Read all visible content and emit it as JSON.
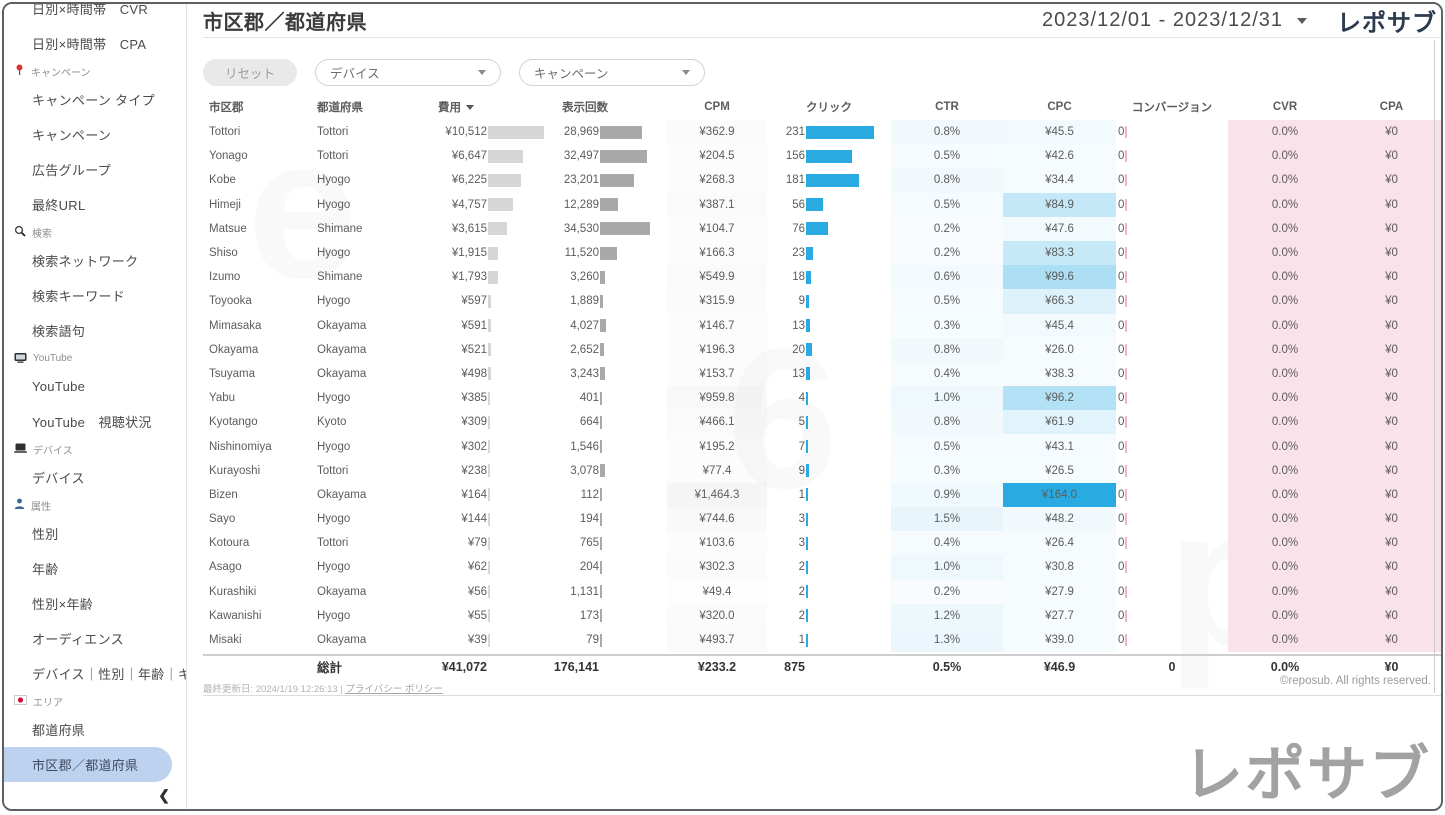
{
  "colors": {
    "accent": "#29abe2",
    "pink_column": "#fae2ea",
    "selected_item": "#bdd2ee",
    "bar_cost": "#d6d6d6",
    "bar_impressions": "#a9a9a9"
  },
  "sidebar": {
    "items": [
      {
        "type": "item",
        "label": "日別×時間帯　CVR"
      },
      {
        "type": "item",
        "label": "日別×時間帯　CPA"
      },
      {
        "type": "section",
        "label": "キャンペーン",
        "icon": "pin-icon"
      },
      {
        "type": "item",
        "label": "キャンペーン タイプ"
      },
      {
        "type": "item",
        "label": "キャンペーン"
      },
      {
        "type": "item",
        "label": "広告グループ"
      },
      {
        "type": "item",
        "label": "最終URL"
      },
      {
        "type": "section",
        "label": "検索",
        "icon": "search-icon"
      },
      {
        "type": "item",
        "label": "検索ネットワーク"
      },
      {
        "type": "item",
        "label": "検索キーワード"
      },
      {
        "type": "item",
        "label": "検索語句"
      },
      {
        "type": "section",
        "label": "YouTube",
        "icon": "tv-icon"
      },
      {
        "type": "item",
        "label": "YouTube"
      },
      {
        "type": "item",
        "label": "YouTube　視聴状況"
      },
      {
        "type": "section",
        "label": "デバイス",
        "icon": "device-icon"
      },
      {
        "type": "item",
        "label": "デバイス"
      },
      {
        "type": "section",
        "label": "属性",
        "icon": "person-icon"
      },
      {
        "type": "item",
        "label": "性別"
      },
      {
        "type": "item",
        "label": "年齢"
      },
      {
        "type": "item",
        "label": "性別×年齢"
      },
      {
        "type": "item",
        "label": "オーディエンス"
      },
      {
        "type": "item",
        "label": "デバイス｜性別｜年齢｜キ..."
      },
      {
        "type": "section",
        "label": "エリア",
        "icon": "japan-flag-icon"
      },
      {
        "type": "item",
        "label": "都道府県"
      },
      {
        "type": "item",
        "label": "市区郡／都道府県",
        "selected": true
      }
    ],
    "collapse_icon": "❮"
  },
  "header": {
    "title": "市区郡／都道府県",
    "date_range": "2023/12/01 - 2023/12/31",
    "logo": "レポサブ"
  },
  "filters": {
    "reset_label": "リセット",
    "dropdowns": [
      {
        "label": "デバイス"
      },
      {
        "label": "キャンペーン"
      }
    ]
  },
  "table": {
    "columns": [
      "市区郡",
      "都道府県",
      "費用",
      "表示回数",
      "CPM",
      "クリック",
      "CTR",
      "CPC",
      "コンバージョン",
      "CVR",
      "CPA"
    ],
    "sort_column": "費用",
    "row_defaults": {
      "conv": "0",
      "cvr": "0.0%",
      "cpa": "¥0"
    },
    "rows": [
      {
        "city": "Tottori",
        "pref": "Tottori",
        "cost": "¥10,512",
        "cost_v": 10512,
        "imp": "28,969",
        "imp_v": 28969,
        "cpm": "¥362.9",
        "cpm_v": 362.9,
        "clicks": 231,
        "ctr": "0.8%",
        "ctr_v": 0.8,
        "cpc": "¥45.5",
        "cpc_v": 45.5
      },
      {
        "city": "Yonago",
        "pref": "Tottori",
        "cost": "¥6,647",
        "cost_v": 6647,
        "imp": "32,497",
        "imp_v": 32497,
        "cpm": "¥204.5",
        "cpm_v": 204.5,
        "clicks": 156,
        "ctr": "0.5%",
        "ctr_v": 0.5,
        "cpc": "¥42.6",
        "cpc_v": 42.6
      },
      {
        "city": "Kobe",
        "pref": "Hyogo",
        "cost": "¥6,225",
        "cost_v": 6225,
        "imp": "23,201",
        "imp_v": 23201,
        "cpm": "¥268.3",
        "cpm_v": 268.3,
        "clicks": 181,
        "ctr": "0.8%",
        "ctr_v": 0.8,
        "cpc": "¥34.4",
        "cpc_v": 34.4
      },
      {
        "city": "Himeji",
        "pref": "Hyogo",
        "cost": "¥4,757",
        "cost_v": 4757,
        "imp": "12,289",
        "imp_v": 12289,
        "cpm": "¥387.1",
        "cpm_v": 387.1,
        "clicks": 56,
        "ctr": "0.5%",
        "ctr_v": 0.5,
        "cpc": "¥84.9",
        "cpc_v": 84.9
      },
      {
        "city": "Matsue",
        "pref": "Shimane",
        "cost": "¥3,615",
        "cost_v": 3615,
        "imp": "34,530",
        "imp_v": 34530,
        "cpm": "¥104.7",
        "cpm_v": 104.7,
        "clicks": 76,
        "ctr": "0.2%",
        "ctr_v": 0.2,
        "cpc": "¥47.6",
        "cpc_v": 47.6
      },
      {
        "city": "Shiso",
        "pref": "Hyogo",
        "cost": "¥1,915",
        "cost_v": 1915,
        "imp": "11,520",
        "imp_v": 11520,
        "cpm": "¥166.3",
        "cpm_v": 166.3,
        "clicks": 23,
        "ctr": "0.2%",
        "ctr_v": 0.2,
        "cpc": "¥83.3",
        "cpc_v": 83.3
      },
      {
        "city": "Izumo",
        "pref": "Shimane",
        "cost": "¥1,793",
        "cost_v": 1793,
        "imp": "3,260",
        "imp_v": 3260,
        "cpm": "¥549.9",
        "cpm_v": 549.9,
        "clicks": 18,
        "ctr": "0.6%",
        "ctr_v": 0.6,
        "cpc": "¥99.6",
        "cpc_v": 99.6
      },
      {
        "city": "Toyooka",
        "pref": "Hyogo",
        "cost": "¥597",
        "cost_v": 597,
        "imp": "1,889",
        "imp_v": 1889,
        "cpm": "¥315.9",
        "cpm_v": 315.9,
        "clicks": 9,
        "ctr": "0.5%",
        "ctr_v": 0.5,
        "cpc": "¥66.3",
        "cpc_v": 66.3
      },
      {
        "city": "Mimasaka",
        "pref": "Okayama",
        "cost": "¥591",
        "cost_v": 591,
        "imp": "4,027",
        "imp_v": 4027,
        "cpm": "¥146.7",
        "cpm_v": 146.7,
        "clicks": 13,
        "ctr": "0.3%",
        "ctr_v": 0.3,
        "cpc": "¥45.4",
        "cpc_v": 45.4
      },
      {
        "city": "Okayama",
        "pref": "Okayama",
        "cost": "¥521",
        "cost_v": 521,
        "imp": "2,652",
        "imp_v": 2652,
        "cpm": "¥196.3",
        "cpm_v": 196.3,
        "clicks": 20,
        "ctr": "0.8%",
        "ctr_v": 0.8,
        "cpc": "¥26.0",
        "cpc_v": 26.0
      },
      {
        "city": "Tsuyama",
        "pref": "Okayama",
        "cost": "¥498",
        "cost_v": 498,
        "imp": "3,243",
        "imp_v": 3243,
        "cpm": "¥153.7",
        "cpm_v": 153.7,
        "clicks": 13,
        "ctr": "0.4%",
        "ctr_v": 0.4,
        "cpc": "¥38.3",
        "cpc_v": 38.3
      },
      {
        "city": "Yabu",
        "pref": "Hyogo",
        "cost": "¥385",
        "cost_v": 385,
        "imp": "401",
        "imp_v": 401,
        "cpm": "¥959.8",
        "cpm_v": 959.8,
        "clicks": 4,
        "ctr": "1.0%",
        "ctr_v": 1.0,
        "cpc": "¥96.2",
        "cpc_v": 96.2
      },
      {
        "city": "Kyotango",
        "pref": "Kyoto",
        "cost": "¥309",
        "cost_v": 309,
        "imp": "664",
        "imp_v": 664,
        "cpm": "¥466.1",
        "cpm_v": 466.1,
        "clicks": 5,
        "ctr": "0.8%",
        "ctr_v": 0.8,
        "cpc": "¥61.9",
        "cpc_v": 61.9
      },
      {
        "city": "Nishinomiya",
        "pref": "Hyogo",
        "cost": "¥302",
        "cost_v": 302,
        "imp": "1,546",
        "imp_v": 1546,
        "cpm": "¥195.2",
        "cpm_v": 195.2,
        "clicks": 7,
        "ctr": "0.5%",
        "ctr_v": 0.5,
        "cpc": "¥43.1",
        "cpc_v": 43.1
      },
      {
        "city": "Kurayoshi",
        "pref": "Tottori",
        "cost": "¥238",
        "cost_v": 238,
        "imp": "3,078",
        "imp_v": 3078,
        "cpm": "¥77.4",
        "cpm_v": 77.4,
        "clicks": 9,
        "ctr": "0.3%",
        "ctr_v": 0.3,
        "cpc": "¥26.5",
        "cpc_v": 26.5
      },
      {
        "city": "Bizen",
        "pref": "Okayama",
        "cost": "¥164",
        "cost_v": 164,
        "imp": "112",
        "imp_v": 112,
        "cpm": "¥1,464.3",
        "cpm_v": 1464.3,
        "clicks": 1,
        "ctr": "0.9%",
        "ctr_v": 0.9,
        "cpc": "¥164.0",
        "cpc_v": 164.0
      },
      {
        "city": "Sayo",
        "pref": "Hyogo",
        "cost": "¥144",
        "cost_v": 144,
        "imp": "194",
        "imp_v": 194,
        "cpm": "¥744.6",
        "cpm_v": 744.6,
        "clicks": 3,
        "ctr": "1.5%",
        "ctr_v": 1.5,
        "cpc": "¥48.2",
        "cpc_v": 48.2
      },
      {
        "city": "Kotoura",
        "pref": "Tottori",
        "cost": "¥79",
        "cost_v": 79,
        "imp": "765",
        "imp_v": 765,
        "cpm": "¥103.6",
        "cpm_v": 103.6,
        "clicks": 3,
        "ctr": "0.4%",
        "ctr_v": 0.4,
        "cpc": "¥26.4",
        "cpc_v": 26.4
      },
      {
        "city": "Asago",
        "pref": "Hyogo",
        "cost": "¥62",
        "cost_v": 62,
        "imp": "204",
        "imp_v": 204,
        "cpm": "¥302.3",
        "cpm_v": 302.3,
        "clicks": 2,
        "ctr": "1.0%",
        "ctr_v": 1.0,
        "cpc": "¥30.8",
        "cpc_v": 30.8
      },
      {
        "city": "Kurashiki",
        "pref": "Okayama",
        "cost": "¥56",
        "cost_v": 56,
        "imp": "1,131",
        "imp_v": 1131,
        "cpm": "¥49.4",
        "cpm_v": 49.4,
        "clicks": 2,
        "ctr": "0.2%",
        "ctr_v": 0.2,
        "cpc": "¥27.9",
        "cpc_v": 27.9
      },
      {
        "city": "Kawanishi",
        "pref": "Hyogo",
        "cost": "¥55",
        "cost_v": 55,
        "imp": "173",
        "imp_v": 173,
        "cpm": "¥320.0",
        "cpm_v": 320.0,
        "clicks": 2,
        "ctr": "1.2%",
        "ctr_v": 1.2,
        "cpc": "¥27.7",
        "cpc_v": 27.7
      },
      {
        "city": "Misaki",
        "pref": "Okayama",
        "cost": "¥39",
        "cost_v": 39,
        "imp": "79",
        "imp_v": 79,
        "cpm": "¥493.7",
        "cpm_v": 493.7,
        "clicks": 1,
        "ctr": "1.3%",
        "ctr_v": 1.3,
        "cpc": "¥39.0",
        "cpc_v": 39.0
      }
    ],
    "total": {
      "label": "総計",
      "cost": "¥41,072",
      "imp": "176,141",
      "cpm": "¥233.2",
      "clicks": "875",
      "ctr": "0.5%",
      "cpc": "¥46.9",
      "conv": "0",
      "cvr": "0.0%",
      "cpa": "¥0"
    }
  },
  "footer": {
    "updated": "最終更新日: 2024/1/19 12:26:13",
    "privacy_link": "プライバシー ポリシー",
    "copyright": "©reposub. All rights reserved.",
    "bottom_logo": "レポサブ"
  }
}
